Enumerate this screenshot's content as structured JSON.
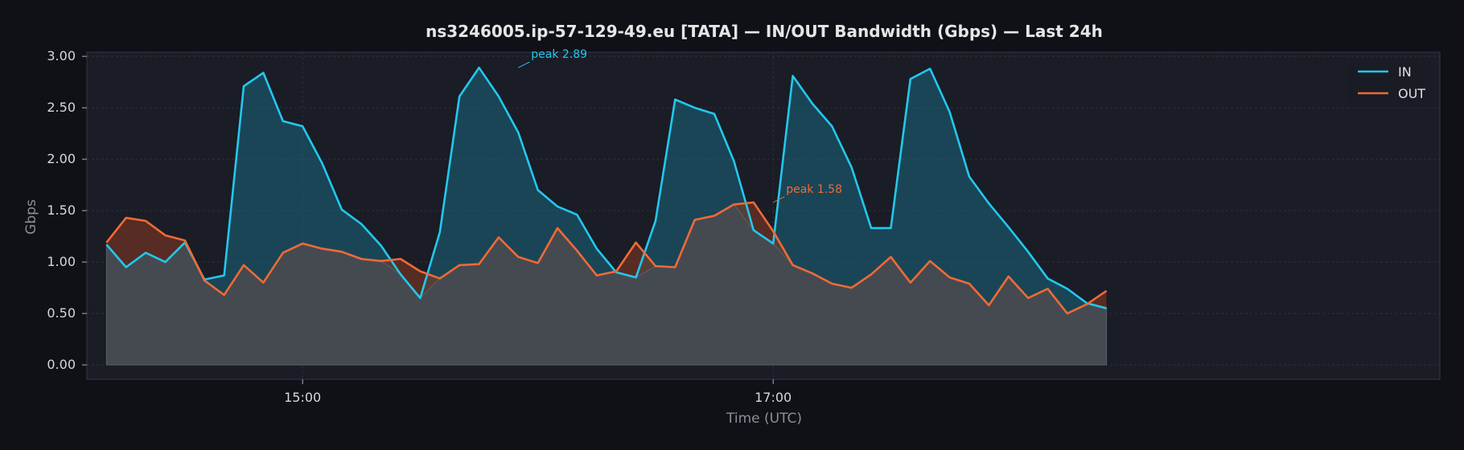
{
  "chart_data": {
    "type": "line",
    "title": "ns3246005.ip-57-129-49.eu [TATA] — IN/OUT Bandwidth (Gbps) — Last 24h",
    "xlabel": "Time (UTC)",
    "ylabel": "Gbps",
    "ylim": [
      -0.14,
      3.04
    ],
    "yticks": [
      0.0,
      0.5,
      1.0,
      1.5,
      2.0,
      2.5,
      3.0
    ],
    "ytick_labels": [
      "0.00",
      "0.50",
      "1.00",
      "1.50",
      "2.00",
      "2.50",
      "3.00"
    ],
    "xlim": [
      "14:05",
      "19:50"
    ],
    "x": [
      "14:10",
      "14:15",
      "14:20",
      "14:25",
      "14:30",
      "14:35",
      "14:40",
      "14:45",
      "14:50",
      "14:55",
      "15:00",
      "15:05",
      "15:10",
      "15:15",
      "15:20",
      "15:25",
      "15:30",
      "15:35",
      "15:40",
      "15:45",
      "15:50",
      "15:55",
      "16:00",
      "16:05",
      "16:10",
      "16:15",
      "16:20",
      "16:25",
      "16:30",
      "16:35",
      "16:40",
      "16:45",
      "16:50",
      "16:55",
      "17:00",
      "17:05",
      "17:10",
      "17:15",
      "17:20",
      "17:25",
      "17:30",
      "17:35",
      "17:40",
      "17:45",
      "17:50",
      "17:55",
      "18:00",
      "18:05",
      "18:10",
      "18:15",
      "18:20",
      "18:25"
    ],
    "xticks": [
      "15:00",
      "17:00"
    ],
    "series": [
      {
        "name": "IN",
        "color": "#22c8ee",
        "values": [
          1.17,
          0.95,
          1.09,
          1.0,
          1.19,
          0.83,
          0.87,
          2.71,
          2.84,
          2.37,
          2.32,
          1.96,
          1.51,
          1.37,
          1.16,
          0.88,
          0.65,
          1.29,
          2.61,
          2.89,
          2.61,
          2.26,
          1.7,
          1.54,
          1.46,
          1.13,
          0.9,
          0.85,
          1.4,
          2.58,
          2.5,
          2.44,
          1.98,
          1.31,
          1.18,
          2.81,
          2.54,
          2.32,
          1.92,
          1.33,
          1.33,
          2.78,
          2.88,
          2.46,
          1.83,
          1.57,
          1.34,
          1.1,
          0.84,
          0.74,
          0.6,
          0.55
        ]
      },
      {
        "name": "OUT",
        "color": "#f06a36",
        "values": [
          1.19,
          1.43,
          1.4,
          1.26,
          1.21,
          0.82,
          0.68,
          0.97,
          0.8,
          1.09,
          1.18,
          1.13,
          1.1,
          1.03,
          1.01,
          1.03,
          0.91,
          0.84,
          0.97,
          0.98,
          1.24,
          1.05,
          0.99,
          1.33,
          1.11,
          0.87,
          0.91,
          1.19,
          0.96,
          0.95,
          1.41,
          1.45,
          1.56,
          1.58,
          1.3,
          0.97,
          0.89,
          0.79,
          0.75,
          0.88,
          1.05,
          0.8,
          1.01,
          0.85,
          0.79,
          0.58,
          0.86,
          0.65,
          0.74,
          0.5,
          0.59,
          0.72
        ]
      }
    ],
    "annotations": [
      {
        "label": "peak 2.89",
        "series": "IN",
        "x": "15:55",
        "y": 2.89
      },
      {
        "label": "peak 1.58",
        "series": "OUT",
        "x": "17:00",
        "y": 1.58
      }
    ],
    "legend": {
      "position": "top-right",
      "entries": [
        "IN",
        "OUT"
      ]
    },
    "grid": true,
    "colors": {
      "background": "#0f1116",
      "plot_background": "#1a1c26",
      "grid": "#2e313d",
      "common_fill": "#454a50"
    }
  }
}
